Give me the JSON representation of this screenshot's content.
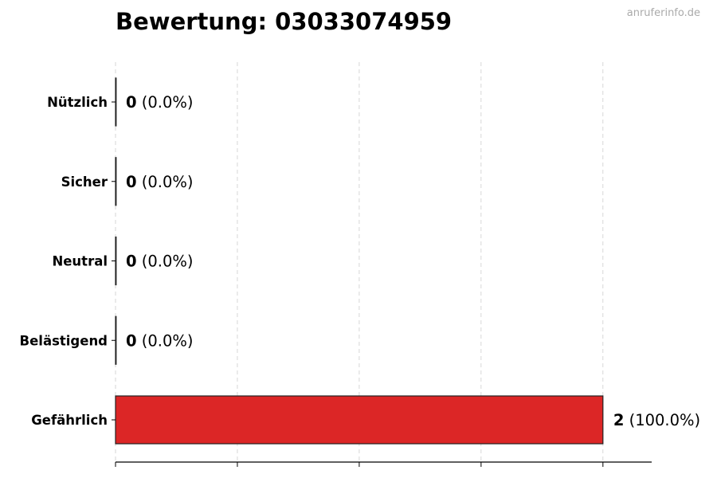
{
  "watermark": "anruferinfo.de",
  "chart_data": {
    "type": "bar",
    "orientation": "horizontal",
    "title": "Bewertung: 03033074959",
    "categories": [
      "Nützlich",
      "Sicher",
      "Neutral",
      "Belästigend",
      "Gefährlich"
    ],
    "values": [
      0,
      0,
      0,
      0,
      2
    ],
    "value_labels": [
      "0",
      "0",
      "0",
      "0",
      "2"
    ],
    "percent_labels": [
      "(0.0%)",
      "(0.0%)",
      "(0.0%)",
      "(0.0%)",
      "(100.0%)"
    ],
    "xlim": [
      0,
      2.2
    ],
    "xticks": [
      0,
      0.5,
      1,
      1.5,
      2
    ],
    "grid": true,
    "xlabel": "",
    "ylabel": "",
    "bar_color": "#dc2626"
  }
}
